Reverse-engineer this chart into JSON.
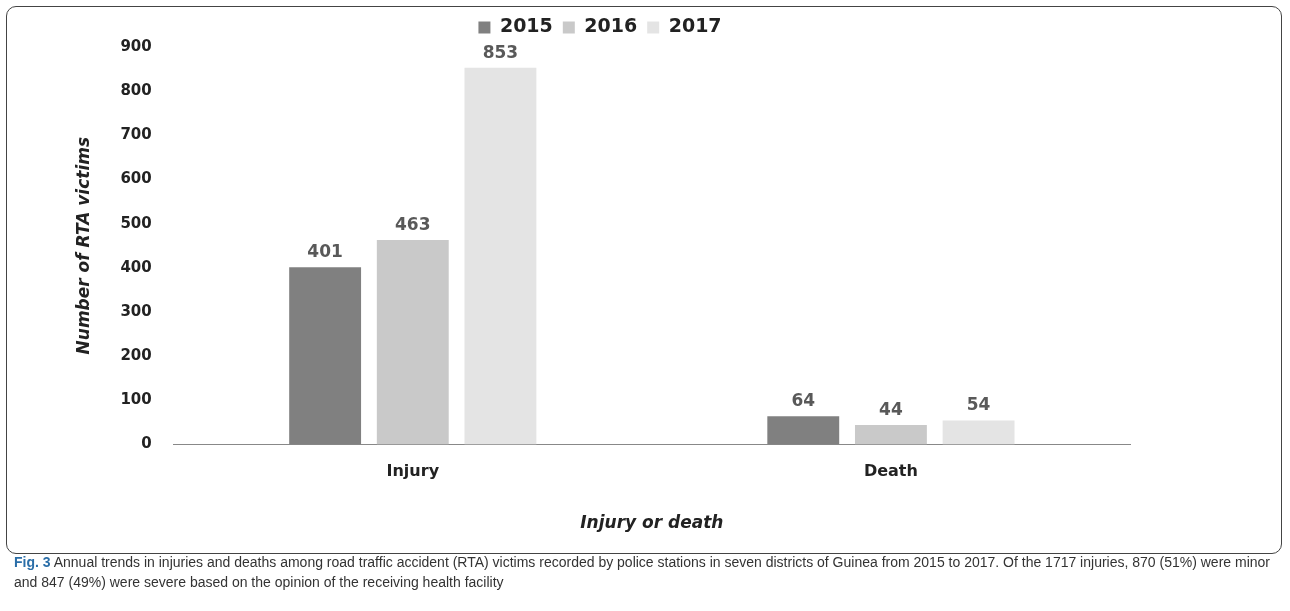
{
  "chart_data": {
    "type": "bar",
    "categories": [
      "Injury",
      "Death"
    ],
    "series": [
      {
        "name": "2015",
        "color": "#808080",
        "values": [
          401,
          64
        ]
      },
      {
        "name": "2016",
        "color": "#c9c9c9",
        "values": [
          463,
          44
        ]
      },
      {
        "name": "2017",
        "color": "#e4e4e4",
        "values": [
          853,
          54
        ]
      }
    ],
    "xlabel": "Injury or death",
    "ylabel": "Number of RTA victims",
    "ylim": [
      0,
      900
    ],
    "yticks": [
      0,
      100,
      200,
      300,
      400,
      500,
      600,
      700,
      800,
      900
    ],
    "grid": false,
    "legend": "top",
    "data_labels": true,
    "annotations": [
      "Fig. 3",
      "Annual trends in injuries and deaths among road traffic accident (RTA) victims recorded by police stations in seven districts of Guinea from 2015 to 2017. Of the 1717 injuries, 870 (51%) were minor and 847 (49%) were severe based on the opinion of the receiving health facility"
    ]
  }
}
